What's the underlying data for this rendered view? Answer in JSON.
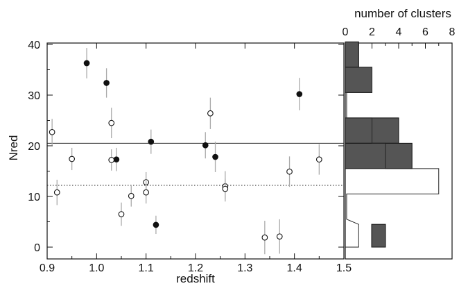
{
  "chart_data": [
    {
      "type": "scatter",
      "title": "",
      "xlabel": "redshift",
      "ylabel": "Nred",
      "xlim": [
        0.9,
        1.5
      ],
      "ylim": [
        0,
        40
      ],
      "x_ticks": [
        "0.9",
        "1.0",
        "1.1",
        "1.2",
        "1.3",
        "1.4",
        "1.5"
      ],
      "y_ticks": [
        "0",
        "10",
        "20",
        "30",
        "40"
      ],
      "reference_lines": [
        {
          "style": "solid",
          "y": 20.5
        },
        {
          "style": "dotted",
          "y": 12.2
        }
      ],
      "series": [
        {
          "marker": "filled-circle",
          "color": "#111111",
          "points": [
            {
              "x": 0.98,
              "y": 36.3,
              "err": 3.0
            },
            {
              "x": 1.02,
              "y": 32.4,
              "err": 2.9
            },
            {
              "x": 1.04,
              "y": 17.3,
              "err": 2.3
            },
            {
              "x": 1.11,
              "y": 20.8,
              "err": 2.4
            },
            {
              "x": 1.12,
              "y": 4.4,
              "err": 1.8
            },
            {
              "x": 1.22,
              "y": 20.1,
              "err": 2.6
            },
            {
              "x": 1.24,
              "y": 17.8,
              "err": 3.0
            },
            {
              "x": 1.41,
              "y": 30.2,
              "err": 3.2
            }
          ]
        },
        {
          "marker": "open-circle",
          "color": "#111111",
          "points": [
            {
              "x": 0.91,
              "y": 22.7,
              "err": 2.6
            },
            {
              "x": 0.92,
              "y": 10.8,
              "err": 2.5
            },
            {
              "x": 0.95,
              "y": 17.4,
              "err": 2.2
            },
            {
              "x": 1.03,
              "y": 24.5,
              "err": 3.0
            },
            {
              "x": 1.03,
              "y": 17.2,
              "err": 2.1
            },
            {
              "x": 1.05,
              "y": 6.5,
              "err": 2.3
            },
            {
              "x": 1.07,
              "y": 10.1,
              "err": 2.1
            },
            {
              "x": 1.1,
              "y": 12.8,
              "err": 2.0
            },
            {
              "x": 1.1,
              "y": 10.8,
              "err": 2.2
            },
            {
              "x": 1.23,
              "y": 26.4,
              "err": 3.1
            },
            {
              "x": 1.26,
              "y": 12.0,
              "err": 3.0
            },
            {
              "x": 1.26,
              "y": 11.5,
              "err": 2.0
            },
            {
              "x": 1.34,
              "y": 1.9,
              "err": 3.3
            },
            {
              "x": 1.37,
              "y": 2.1,
              "err": 3.4
            },
            {
              "x": 1.39,
              "y": 14.9,
              "err": 3.0
            },
            {
              "x": 1.45,
              "y": 17.3,
              "err": 3.0
            }
          ]
        }
      ]
    },
    {
      "type": "bar",
      "orientation": "horizontal",
      "xlabel": "number of clusters",
      "xlim": [
        0,
        8
      ],
      "x_ticks": [
        "0",
        "2",
        "4",
        "6",
        "8"
      ],
      "ylim": [
        0,
        40
      ],
      "series": [
        {
          "fill": "#555555",
          "bins": [
            {
              "from": 32.5,
              "to": 40.5,
              "count": 1
            },
            {
              "from": 30.5,
              "to": 35.5,
              "count": 2
            },
            {
              "from": 20.5,
              "to": 25.5,
              "count": 4
            },
            {
              "from": 15.5,
              "to": 20.5,
              "count": 5
            },
            {
              "from": 0.0,
              "to": 4.5,
              "count": 2
            }
          ]
        },
        {
          "fill": "none",
          "bins": [
            {
              "from": 35.5,
              "to": 40.5,
              "count": 1
            },
            {
              "from": 30.5,
              "to": 35.5,
              "count": 2
            },
            {
              "from": 25.5,
              "to": 30.5,
              "count": 0.1
            },
            {
              "from": 20.5,
              "to": 25.5,
              "count": 2
            },
            {
              "from": 15.5,
              "to": 20.5,
              "count": 3
            },
            {
              "from": 10.5,
              "to": 15.5,
              "count": 7
            },
            {
              "from": 5.5,
              "to": 10.5,
              "count": 0.1
            },
            {
              "from": 0.0,
              "to": 4.5,
              "count": 1
            }
          ]
        }
      ]
    }
  ]
}
